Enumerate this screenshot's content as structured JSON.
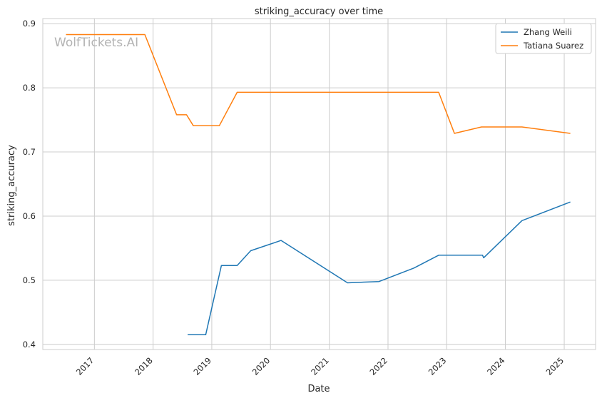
{
  "watermark": "WolfTickets.AI",
  "chart_data": {
    "type": "line",
    "title": "striking_accuracy over time",
    "xlabel": "Date",
    "ylabel": "striking_accuracy",
    "x_ticks": [
      "2017",
      "2018",
      "2019",
      "2020",
      "2021",
      "2022",
      "2023",
      "2024",
      "2025"
    ],
    "y_ticks": [
      "0.4",
      "0.5",
      "0.6",
      "0.7",
      "0.8",
      "0.9"
    ],
    "xlim": [
      "2016-02-15",
      "2025-07-15"
    ],
    "ylim": [
      0.392,
      0.908
    ],
    "grid": true,
    "legend_position": "top-right",
    "series": [
      {
        "name": "Zhang Weili",
        "color": "#1f77b4",
        "points": [
          [
            "2018-08-04",
            0.415
          ],
          [
            "2018-11-24",
            0.415
          ],
          [
            "2019-03-02",
            0.523
          ],
          [
            "2019-06-08",
            0.523
          ],
          [
            "2019-08-31",
            0.546
          ],
          [
            "2020-03-07",
            0.562
          ],
          [
            "2021-04-24",
            0.496
          ],
          [
            "2021-11-06",
            0.498
          ],
          [
            "2022-06-11",
            0.519
          ],
          [
            "2022-11-12",
            0.539
          ],
          [
            "2023-08-12",
            0.539
          ],
          [
            "2023-08-19",
            0.535
          ],
          [
            "2024-04-13",
            0.593
          ],
          [
            "2025-02-08",
            0.622
          ]
        ]
      },
      {
        "name": "Tatiana Suarez",
        "color": "#ff7f0e",
        "points": [
          [
            "2016-07-08",
            0.883
          ],
          [
            "2017-11-11",
            0.883
          ],
          [
            "2018-05-27",
            0.758
          ],
          [
            "2018-07-28",
            0.758
          ],
          [
            "2018-09-08",
            0.741
          ],
          [
            "2019-02-17",
            0.741
          ],
          [
            "2019-06-08",
            0.793
          ],
          [
            "2022-11-12",
            0.793
          ],
          [
            "2023-02-18",
            0.729
          ],
          [
            "2023-08-05",
            0.739
          ],
          [
            "2024-04-13",
            0.739
          ],
          [
            "2025-02-08",
            0.729
          ]
        ]
      }
    ]
  }
}
